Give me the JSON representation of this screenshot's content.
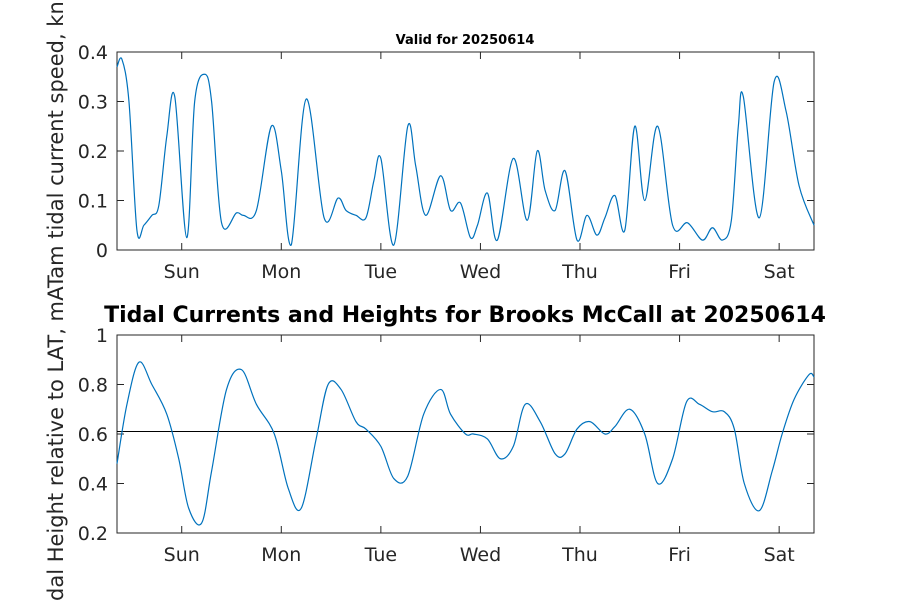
{
  "colors": {
    "series": "#0072BD",
    "axis": "#262626",
    "reference_line": "#000000"
  },
  "chart_data": [
    {
      "type": "line",
      "title": "Valid for 20250614",
      "ylabel": "ATam tidal current speed, kn",
      "xlabel": "",
      "ylim": [
        0,
        0.4
      ],
      "yticks": [
        0,
        0.1,
        0.2,
        0.3,
        0.4
      ],
      "ytick_labels": [
        "0",
        "0.1",
        "0.2",
        "0.3",
        "0.4"
      ],
      "xlim": [
        0,
        7
      ],
      "xticks": [
        0.65,
        1.65,
        2.65,
        3.65,
        4.65,
        5.65,
        6.65
      ],
      "xtick_labels": [
        "Sun",
        "Mon",
        "Tue",
        "Wed",
        "Thu",
        "Fri",
        "Sat"
      ],
      "grid": false,
      "series": [
        {
          "x": [
            0,
            0.05,
            0.12,
            0.2,
            0.27,
            0.35,
            0.42,
            0.5,
            0.58,
            0.7,
            0.78,
            0.88,
            0.95,
            1.05,
            1.2,
            1.27,
            1.4,
            1.55,
            1.65,
            1.75,
            1.9,
            2.08,
            2.22,
            2.3,
            2.4,
            2.5,
            2.58,
            2.65,
            2.78,
            2.92,
            3.0,
            3.1,
            3.25,
            3.35,
            3.45,
            3.55,
            3.62,
            3.72,
            3.82,
            3.98,
            4.12,
            4.22,
            4.3,
            4.4,
            4.5,
            4.62,
            4.72,
            4.82,
            4.9,
            5.0,
            5.1,
            5.2,
            5.3,
            5.43,
            5.58,
            5.73,
            5.88,
            5.98,
            6.08,
            6.17,
            6.24,
            6.29,
            6.45,
            6.6,
            6.72,
            6.85,
            7.0
          ],
          "y": [
            0.37,
            0.385,
            0.3,
            0.04,
            0.05,
            0.07,
            0.09,
            0.23,
            0.31,
            0.025,
            0.3,
            0.355,
            0.3,
            0.055,
            0.075,
            0.07,
            0.08,
            0.25,
            0.16,
            0.01,
            0.305,
            0.065,
            0.105,
            0.08,
            0.07,
            0.065,
            0.14,
            0.185,
            0.01,
            0.25,
            0.17,
            0.07,
            0.15,
            0.08,
            0.095,
            0.025,
            0.05,
            0.115,
            0.02,
            0.185,
            0.06,
            0.2,
            0.12,
            0.08,
            0.16,
            0.02,
            0.07,
            0.03,
            0.065,
            0.11,
            0.04,
            0.25,
            0.1,
            0.25,
            0.05,
            0.055,
            0.02,
            0.045,
            0.02,
            0.06,
            0.25,
            0.31,
            0.065,
            0.34,
            0.28,
            0.13,
            0.05
          ]
        }
      ]
    },
    {
      "type": "line",
      "title": "Tidal Currents and Heights for Brooks McCall at 20250614",
      "ylabel": "Tidal Height relative to LAT, m",
      "xlabel": "",
      "ylim": [
        0.2,
        1
      ],
      "yticks": [
        0.2,
        0.4,
        0.6,
        0.8,
        1
      ],
      "ytick_labels": [
        "0.2",
        "0.4",
        "0.6",
        "0.8",
        "1"
      ],
      "xlim": [
        0,
        7
      ],
      "xticks": [
        0.65,
        1.65,
        2.65,
        3.65,
        4.65,
        5.65,
        6.65
      ],
      "xtick_labels": [
        "Sun",
        "Mon",
        "Tue",
        "Wed",
        "Thu",
        "Fri",
        "Sat"
      ],
      "grid": false,
      "reference_line": 0.61,
      "series": [
        {
          "x": [
            0,
            0.1,
            0.22,
            0.35,
            0.5,
            0.62,
            0.72,
            0.85,
            0.95,
            1.1,
            1.25,
            1.4,
            1.58,
            1.72,
            1.85,
            2.0,
            2.12,
            2.25,
            2.4,
            2.5,
            2.65,
            2.78,
            2.92,
            3.08,
            3.25,
            3.35,
            3.5,
            3.58,
            3.72,
            3.85,
            3.98,
            4.1,
            4.25,
            4.4,
            4.5,
            4.62,
            4.75,
            4.9,
            5.0,
            5.15,
            5.3,
            5.43,
            5.58,
            5.72,
            5.85,
            5.98,
            6.1,
            6.2,
            6.3,
            6.45,
            6.58,
            6.68,
            6.8,
            6.95,
            7.0
          ],
          "y": [
            0.48,
            0.72,
            0.89,
            0.8,
            0.68,
            0.5,
            0.3,
            0.24,
            0.45,
            0.78,
            0.86,
            0.72,
            0.6,
            0.38,
            0.3,
            0.58,
            0.8,
            0.78,
            0.65,
            0.62,
            0.55,
            0.42,
            0.43,
            0.68,
            0.78,
            0.68,
            0.6,
            0.6,
            0.58,
            0.5,
            0.55,
            0.72,
            0.65,
            0.52,
            0.52,
            0.62,
            0.65,
            0.6,
            0.63,
            0.7,
            0.6,
            0.4,
            0.5,
            0.73,
            0.72,
            0.69,
            0.69,
            0.62,
            0.4,
            0.29,
            0.45,
            0.6,
            0.74,
            0.84,
            0.83
          ]
        }
      ]
    }
  ]
}
